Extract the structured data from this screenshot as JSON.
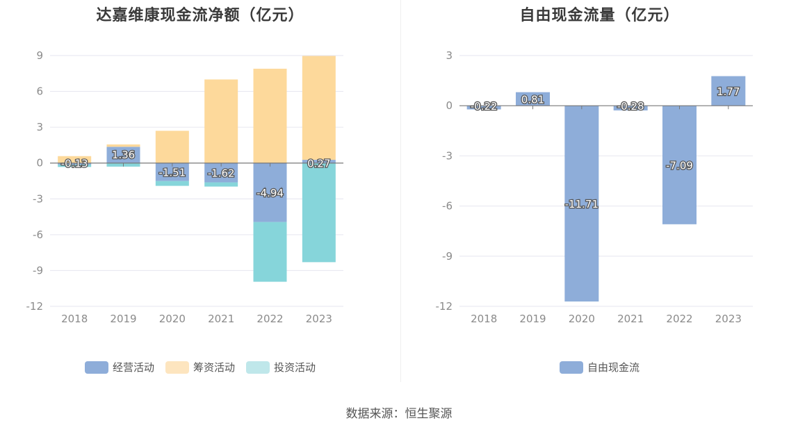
{
  "source_text": "数据来源：恒生聚源",
  "colors": {
    "operating": "#8eadd9",
    "financing": "#fdd99b",
    "investing": "#86d5da",
    "fcf": "#8eadd9",
    "grid": "#e6e6ef",
    "zero_axis": "#777777"
  },
  "chart_data": [
    {
      "type": "bar",
      "stacked": true,
      "title": "达嘉维康现金流净额（亿元）",
      "categories": [
        "2018",
        "2019",
        "2020",
        "2021",
        "2022",
        "2023"
      ],
      "ylim": [
        -12,
        9
      ],
      "yticks": [
        9,
        6,
        3,
        0,
        -3,
        -6,
        -9,
        -12
      ],
      "series": [
        {
          "name": "经营活动",
          "color_key": "operating",
          "values": [
            -0.13,
            1.36,
            -1.51,
            -1.62,
            -4.94,
            0.27
          ],
          "labels": [
            "-0.13",
            "1.36",
            "-1.51",
            "-1.62",
            "-4.94",
            "0.27"
          ]
        },
        {
          "name": "筹资活动",
          "color_key": "financing",
          "values": [
            0.58,
            0.2,
            2.7,
            7.0,
            7.9,
            8.7
          ]
        },
        {
          "name": "投资活动",
          "color_key": "investing",
          "values": [
            -0.2,
            -0.3,
            -0.4,
            -0.35,
            -5.0,
            -8.3
          ]
        }
      ],
      "legend": [
        "经营活动",
        "筹资活动",
        "投资活动"
      ],
      "legend_position": "bottom",
      "grid": true
    },
    {
      "type": "bar",
      "stacked": false,
      "title": "自由现金流量（亿元）",
      "categories": [
        "2018",
        "2019",
        "2020",
        "2021",
        "2022",
        "2023"
      ],
      "ylim": [
        -12,
        3
      ],
      "yticks": [
        3,
        0,
        -3,
        -6,
        -9,
        -12
      ],
      "series": [
        {
          "name": "自由现金流",
          "color_key": "fcf",
          "values": [
            -0.22,
            0.81,
            -11.71,
            -0.28,
            -7.09,
            1.77
          ],
          "labels": [
            "-0.22",
            "0.81",
            "-11.71",
            "-0.28",
            "-7.09",
            "1.77"
          ]
        }
      ],
      "legend": [
        "自由现金流"
      ],
      "legend_position": "bottom",
      "grid": true
    }
  ]
}
